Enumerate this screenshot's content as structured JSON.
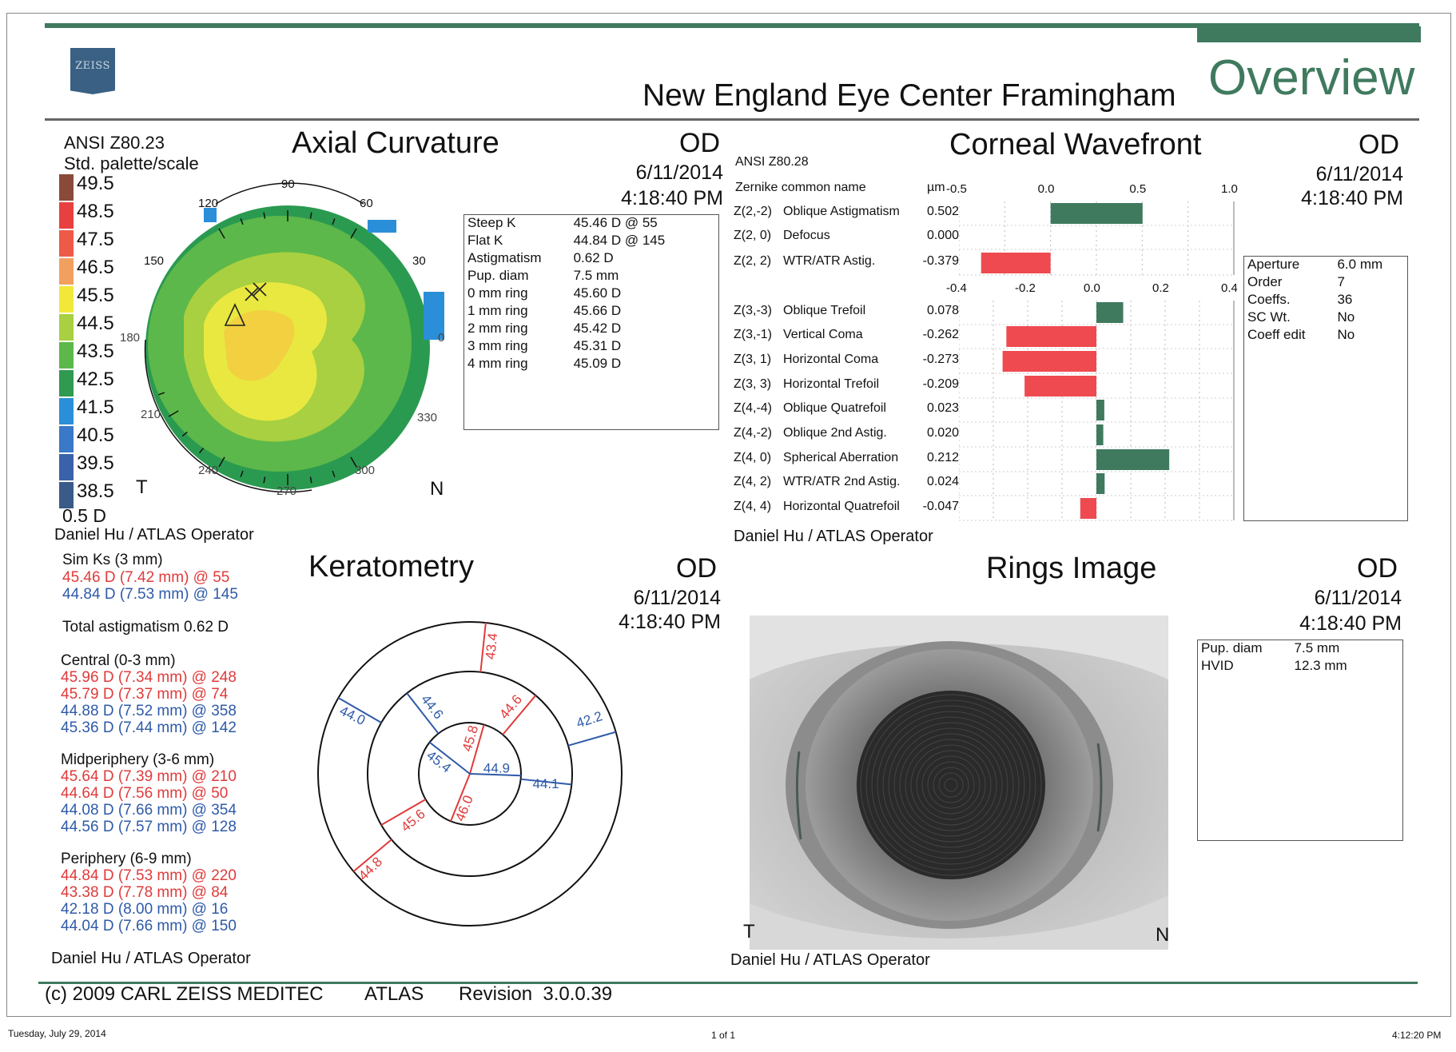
{
  "header": {
    "logo_text": "ZEISS",
    "hospital": "New England Eye Center Framingham",
    "overview": "Overview"
  },
  "axial": {
    "standard": "ANSI Z80.23",
    "palette": "Std. palette/scale",
    "title": "Axial Curvature",
    "eye": "OD",
    "date": "6/11/2014",
    "time": "4:18:40 PM",
    "scale": [
      {
        "v": "49.5",
        "c": "#8a4a3a"
      },
      {
        "v": "48.5",
        "c": "#e84040"
      },
      {
        "v": "47.5",
        "c": "#ee5a48"
      },
      {
        "v": "46.5",
        "c": "#f2a060"
      },
      {
        "v": "45.5",
        "c": "#f2e83a"
      },
      {
        "v": "44.5",
        "c": "#a8d040"
      },
      {
        "v": "43.5",
        "c": "#5cb84a"
      },
      {
        "v": "42.5",
        "c": "#2f9a50"
      },
      {
        "v": "41.5",
        "c": "#2a8fd8"
      },
      {
        "v": "40.5",
        "c": "#3a78c8"
      },
      {
        "v": "39.5",
        "c": "#3a62a8"
      },
      {
        "v": "38.5",
        "c": "#3a5a88"
      }
    ],
    "step": "0.5 D",
    "angles": [
      "90",
      "120",
      "60",
      "150",
      "30",
      "180",
      "0",
      "210",
      "330",
      "240",
      "270",
      "300"
    ],
    "temporal": "T",
    "nasal": "N",
    "info": [
      [
        "Steep K",
        "45.46 D @ 55"
      ],
      [
        "Flat K",
        "44.84 D @ 145"
      ],
      [
        "Astigmatism",
        "0.62 D"
      ],
      [
        "Pup. diam",
        "7.5 mm"
      ],
      [
        "0 mm ring",
        "45.60 D"
      ],
      [
        "1 mm ring",
        "45.66 D"
      ],
      [
        "2 mm ring",
        "45.42 D"
      ],
      [
        "3 mm ring",
        "45.31 D"
      ],
      [
        "4 mm ring",
        "45.09 D"
      ]
    ],
    "operator": "Daniel Hu / ATLAS Operator"
  },
  "wavefront": {
    "standard": "ANSI Z80.28",
    "title": "Corneal Wavefront",
    "eye": "OD",
    "date": "6/11/2014",
    "time": "4:18:40 PM",
    "col_name": "Zernike common name",
    "col_unit": "µm",
    "top_ticks": [
      "-0.5",
      "0.0",
      "0.5",
      "1.0"
    ],
    "bottom_ticks": [
      "-0.4",
      "-0.2",
      "0.0",
      "0.2",
      "0.4"
    ],
    "info": [
      [
        "Aperture",
        "6.0 mm"
      ],
      [
        "Order",
        "7"
      ],
      [
        "Coeffs.",
        "36"
      ],
      [
        "SC Wt.",
        "No"
      ],
      [
        "Coeff edit",
        "No"
      ]
    ],
    "operator": "Daniel Hu / ATLAS Operator"
  },
  "chart_data": {
    "type": "bar",
    "groups": [
      {
        "xlim": [
          -0.5,
          1.0
        ],
        "rows": [
          {
            "code": "Z(2,-2)",
            "name": "Oblique Astigmatism",
            "value": 0.502
          },
          {
            "code": "Z(2, 0)",
            "name": "Defocus",
            "value": 0.0
          },
          {
            "code": "Z(2, 2)",
            "name": "WTR/ATR Astig.",
            "value": -0.379
          }
        ]
      },
      {
        "xlim": [
          -0.4,
          0.4
        ],
        "rows": [
          {
            "code": "Z(3,-3)",
            "name": "Oblique Trefoil",
            "value": 0.078
          },
          {
            "code": "Z(3,-1)",
            "name": "Vertical Coma",
            "value": -0.262
          },
          {
            "code": "Z(3, 1)",
            "name": "Horizontal Coma",
            "value": -0.273
          },
          {
            "code": "Z(3, 3)",
            "name": "Horizontal Trefoil",
            "value": -0.209
          },
          {
            "code": "Z(4,-4)",
            "name": "Oblique Quatrefoil",
            "value": 0.023
          },
          {
            "code": "Z(4,-2)",
            "name": "Oblique 2nd Astig.",
            "value": 0.02
          },
          {
            "code": "Z(4, 0)",
            "name": "Spherical Aberration",
            "value": 0.212
          },
          {
            "code": "Z(4, 2)",
            "name": "WTR/ATR 2nd Astig.",
            "value": 0.024
          },
          {
            "code": "Z(4, 4)",
            "name": "Horizontal Quatrefoil",
            "value": -0.047
          }
        ]
      }
    ],
    "colors": {
      "positive": "#3f7a5e",
      "negative": "#ee4a50"
    }
  },
  "keratometry": {
    "title": "Keratometry",
    "eye": "OD",
    "date": "6/11/2014",
    "time": "4:18:40 PM",
    "sim_title": "Sim Ks (3 mm)",
    "sim": [
      {
        "t": "45.46 D (7.42 mm) @ 55",
        "c": "red"
      },
      {
        "t": "44.84 D (7.53 mm) @ 145",
        "c": "blue"
      }
    ],
    "total": "Total astigmatism 0.62 D",
    "zones": [
      {
        "title": "Central (0-3 mm)",
        "lines": [
          {
            "t": "45.96 D (7.34 mm) @ 248",
            "c": "red"
          },
          {
            "t": "45.79 D (7.37 mm) @ 74",
            "c": "red"
          },
          {
            "t": "44.88 D (7.52 mm) @ 358",
            "c": "blue"
          },
          {
            "t": "45.36 D (7.44 mm) @ 142",
            "c": "blue"
          }
        ]
      },
      {
        "title": "Midperiphery (3-6 mm)",
        "lines": [
          {
            "t": "45.64 D (7.39 mm) @ 210",
            "c": "red"
          },
          {
            "t": "44.64 D (7.56 mm) @ 50",
            "c": "red"
          },
          {
            "t": "44.08 D (7.66 mm) @ 354",
            "c": "blue"
          },
          {
            "t": "44.56 D (7.57 mm) @ 128",
            "c": "blue"
          }
        ]
      },
      {
        "title": "Periphery (6-9 mm)",
        "lines": [
          {
            "t": "44.84 D (7.53 mm) @ 220",
            "c": "red"
          },
          {
            "t": "43.38 D (7.78 mm) @ 84",
            "c": "red"
          },
          {
            "t": "42.18 D (8.00 mm) @ 16",
            "c": "blue"
          },
          {
            "t": "44.04 D (7.66 mm) @ 150",
            "c": "blue"
          }
        ]
      }
    ],
    "diagram_labels": {
      "inner": [
        {
          "t": "45.8",
          "c": "red"
        },
        {
          "t": "44.9",
          "c": "blue"
        },
        {
          "t": "45.4",
          "c": "blue"
        },
        {
          "t": "46.0",
          "c": "red"
        }
      ],
      "middle": [
        {
          "t": "44.6",
          "c": "red"
        },
        {
          "t": "44.1",
          "c": "blue"
        },
        {
          "t": "44.6",
          "c": "blue"
        },
        {
          "t": "45.6",
          "c": "red"
        }
      ],
      "outer": [
        {
          "t": "43.4",
          "c": "red"
        },
        {
          "t": "42.2",
          "c": "blue"
        },
        {
          "t": "44.0",
          "c": "blue"
        },
        {
          "t": "44.8",
          "c": "red"
        }
      ]
    },
    "operator": "Daniel Hu / ATLAS Operator"
  },
  "rings": {
    "title": "Rings Image",
    "eye": "OD",
    "date": "6/11/2014",
    "time": "4:18:40 PM",
    "info": [
      [
        "Pup. diam",
        "7.5 mm"
      ],
      [
        "HVID",
        "12.3 mm"
      ]
    ],
    "temporal": "T",
    "nasal": "N",
    "operator": "Daniel Hu / ATLAS Operator"
  },
  "footer": {
    "copyright": "(c) 2009 CARL ZEISS MEDITEC",
    "product": "ATLAS",
    "revision": "Revision  3.0.0.39"
  },
  "print": {
    "date": "Tuesday, July 29, 2014",
    "page": "1 of 1",
    "time": "4:12:20 PM"
  }
}
